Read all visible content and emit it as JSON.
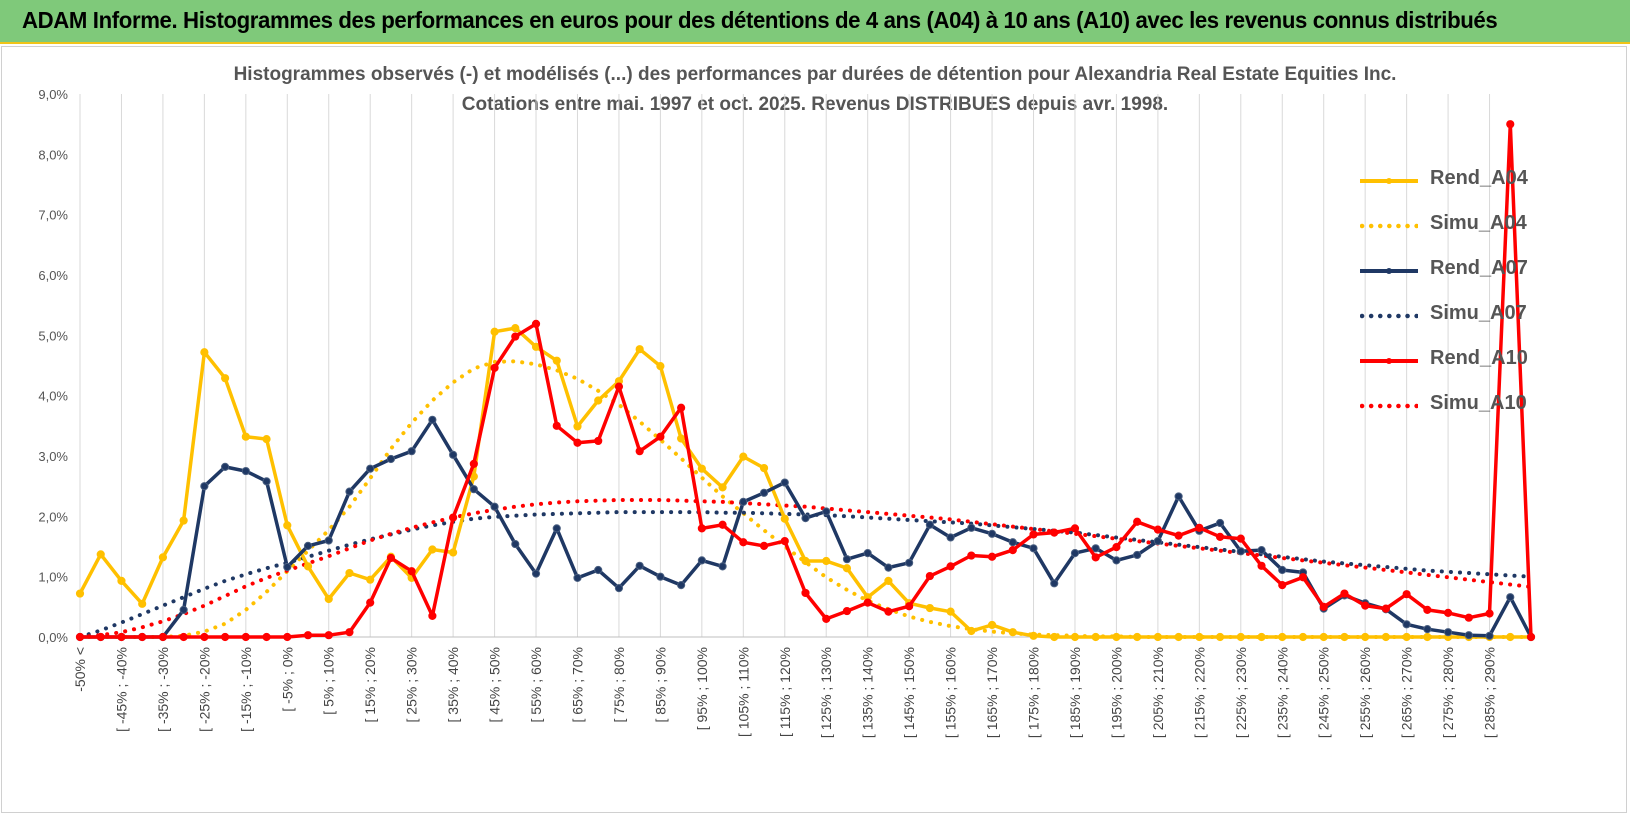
{
  "header": {
    "title": "ADAM Informe. Histogrammes des performances en euros pour des détentions de 4 ans (A04) à 10 ans (A10) avec les revenus connus distribués"
  },
  "chart_data": {
    "type": "line",
    "title_line1": "Histogrammes observés (-) et modélisés (...) des performances par durées de détention pour Alexandria Real Estate Equities Inc.",
    "title_line2": "Cotations entre mai. 1997 et oct. 2025. Revenus DISTRIBUES depuis avr. 1998.",
    "ylim": [
      0,
      9
    ],
    "y_ticks": [
      "0,0%",
      "1,0%",
      "2,0%",
      "3,0%",
      "4,0%",
      "5,0%",
      "6,0%",
      "7,0%",
      "8,0%",
      "9,0%"
    ],
    "grid": "vertical",
    "legend_position": "right",
    "x_labels": [
      "-50% <",
      "[ -45% ; -40%",
      "[ -35% ; -30%",
      "[ -25% ; -20%",
      "[ -15% ; -10%",
      "[ -5% ; 0%",
      "[ 5% ; 10%",
      "[ 15% ; 20%",
      "[ 25% ; 30%",
      "[ 35% ; 40%",
      "[ 45% ; 50%",
      "[ 55% ; 60%",
      "[ 65% ; 70%",
      "[ 75% ; 80%",
      "[ 85% ; 90%",
      "[ 95% ; 100%",
      "[ 105% ; 110%",
      "[ 115% ; 120%",
      "[ 125% ; 130%",
      "[ 135% ; 140%",
      "[ 145% ; 150%",
      "[ 155% ; 160%",
      "[ 165% ; 170%",
      "[ 175% ; 180%",
      "[ 185% ; 190%",
      "[ 195% ; 200%",
      "[ 205% ; 210%",
      "[ 215% ; 220%",
      "[ 225% ; 230%",
      "[ 235% ; 240%",
      "[ 245% ; 250%",
      "[ 255% ; 260%",
      "[ 265% ; 270%",
      "[ 275% ; 280%",
      "[ 285% ; 290%"
    ],
    "series": [
      {
        "name": "Rend_A04",
        "color": "#ffc000",
        "style": "solid",
        "markers": true,
        "values": [
          0.72,
          1.37,
          0.93,
          0.55,
          1.32,
          1.93,
          4.72,
          4.29,
          3.32,
          3.28,
          1.85,
          1.17,
          0.63,
          1.06,
          0.95,
          1.33,
          0.98,
          1.45,
          1.4,
          2.66,
          5.06,
          5.12,
          4.81,
          4.58,
          3.49,
          3.92,
          4.24,
          4.77,
          4.49,
          3.29,
          2.79,
          2.48,
          2.99,
          2.8,
          1.96,
          1.26,
          1.26,
          1.14,
          0.66,
          0.93,
          0.56,
          0.48,
          0.42,
          0.1,
          0.2,
          0.08,
          0.02,
          0,
          0,
          0,
          0,
          0,
          0,
          0,
          0,
          0,
          0,
          0,
          0,
          0,
          0,
          0,
          0,
          0,
          0,
          0,
          0,
          0,
          0,
          0,
          0
        ]
      },
      {
        "name": "Simu_A04",
        "color": "#ffc000",
        "style": "dotted",
        "markers": false,
        "values": [
          0,
          0,
          0,
          0,
          0,
          0.02,
          0.09,
          0.22,
          0.45,
          0.75,
          1.09,
          1.43,
          1.77,
          2.16,
          2.63,
          3.12,
          3.55,
          3.92,
          4.22,
          4.45,
          4.56,
          4.57,
          4.52,
          4.42,
          4.28,
          4.08,
          3.85,
          3.57,
          3.27,
          2.96,
          2.64,
          2.33,
          2.05,
          1.77,
          1.5,
          1.24,
          0.99,
          0.78,
          0.6,
          0.46,
          0.34,
          0.25,
          0.18,
          0.13,
          0.09,
          0.06,
          0.04,
          0.03,
          0.02,
          0.01,
          0.01,
          0,
          0,
          0,
          0,
          0,
          0,
          0,
          0,
          0,
          0,
          0,
          0,
          0,
          0,
          0,
          0,
          0,
          0,
          0,
          0
        ]
      },
      {
        "name": "Rend_A07",
        "color": "#1f3864",
        "style": "solid",
        "markers": true,
        "values": [
          0,
          0,
          0,
          0,
          0,
          0.45,
          2.5,
          2.82,
          2.75,
          2.58,
          1.16,
          1.51,
          1.6,
          2.41,
          2.79,
          2.95,
          3.08,
          3.6,
          3.02,
          2.45,
          2.16,
          1.54,
          1.05,
          1.8,
          0.98,
          1.11,
          0.81,
          1.18,
          1.0,
          0.86,
          1.27,
          1.17,
          2.24,
          2.39,
          2.56,
          1.97,
          2.08,
          1.29,
          1.39,
          1.15,
          1.23,
          1.86,
          1.65,
          1.81,
          1.71,
          1.57,
          1.47,
          0.89,
          1.39,
          1.47,
          1.27,
          1.36,
          1.59,
          2.33,
          1.76,
          1.89,
          1.42,
          1.44,
          1.11,
          1.07,
          0.47,
          0.69,
          0.56,
          0.46,
          0.21,
          0.13,
          0.08,
          0.03,
          0.02,
          0.66,
          0
        ]
      },
      {
        "name": "Simu_A07",
        "color": "#1f3864",
        "style": "dotted",
        "markers": false,
        "values": [
          0,
          0.11,
          0.24,
          0.38,
          0.52,
          0.66,
          0.8,
          0.93,
          1.04,
          1.14,
          1.23,
          1.33,
          1.43,
          1.53,
          1.62,
          1.7,
          1.78,
          1.85,
          1.91,
          1.96,
          1.99,
          2.01,
          2.03,
          2.04,
          2.05,
          2.06,
          2.07,
          2.07,
          2.07,
          2.07,
          2.07,
          2.06,
          2.06,
          2.05,
          2.04,
          2.03,
          2.02,
          2.0,
          1.98,
          1.96,
          1.94,
          1.92,
          1.9,
          1.88,
          1.85,
          1.82,
          1.79,
          1.76,
          1.73,
          1.69,
          1.65,
          1.61,
          1.57,
          1.53,
          1.49,
          1.45,
          1.41,
          1.37,
          1.33,
          1.29,
          1.25,
          1.22,
          1.19,
          1.16,
          1.13,
          1.1,
          1.08,
          1.06,
          1.04,
          1.02,
          1.0
        ]
      },
      {
        "name": "Rend_A10",
        "color": "#ff0000",
        "style": "solid",
        "markers": true,
        "values": [
          0,
          0,
          0,
          0,
          0,
          0,
          0,
          0,
          0,
          0,
          0,
          0.03,
          0.03,
          0.08,
          0.57,
          1.31,
          1.09,
          0.35,
          1.98,
          2.87,
          4.46,
          4.98,
          5.19,
          3.5,
          3.22,
          3.25,
          4.15,
          3.08,
          3.32,
          3.8,
          1.8,
          1.86,
          1.57,
          1.51,
          1.59,
          0.73,
          0.3,
          0.43,
          0.57,
          0.42,
          0.51,
          1.01,
          1.17,
          1.35,
          1.33,
          1.44,
          1.7,
          1.73,
          1.8,
          1.32,
          1.49,
          1.91,
          1.78,
          1.68,
          1.81,
          1.66,
          1.63,
          1.18,
          0.86,
          0.99,
          0.5,
          0.72,
          0.52,
          0.47,
          0.71,
          0.45,
          0.4,
          0.32,
          0.39,
          8.5,
          0
        ]
      },
      {
        "name": "Simu_A10",
        "color": "#ff0000",
        "style": "dotted",
        "markers": false,
        "values": [
          0,
          0.03,
          0.08,
          0.16,
          0.26,
          0.38,
          0.52,
          0.68,
          0.84,
          0.98,
          1.1,
          1.22,
          1.34,
          1.47,
          1.6,
          1.71,
          1.81,
          1.9,
          1.98,
          2.05,
          2.11,
          2.16,
          2.2,
          2.23,
          2.25,
          2.26,
          2.27,
          2.27,
          2.27,
          2.26,
          2.25,
          2.24,
          2.22,
          2.2,
          2.18,
          2.16,
          2.13,
          2.1,
          2.07,
          2.04,
          2.01,
          1.98,
          1.95,
          1.91,
          1.87,
          1.83,
          1.79,
          1.75,
          1.71,
          1.67,
          1.63,
          1.59,
          1.55,
          1.51,
          1.47,
          1.43,
          1.39,
          1.35,
          1.31,
          1.27,
          1.23,
          1.19,
          1.15,
          1.11,
          1.07,
          1.03,
          0.99,
          0.95,
          0.91,
          0.87,
          0.83
        ]
      }
    ]
  }
}
